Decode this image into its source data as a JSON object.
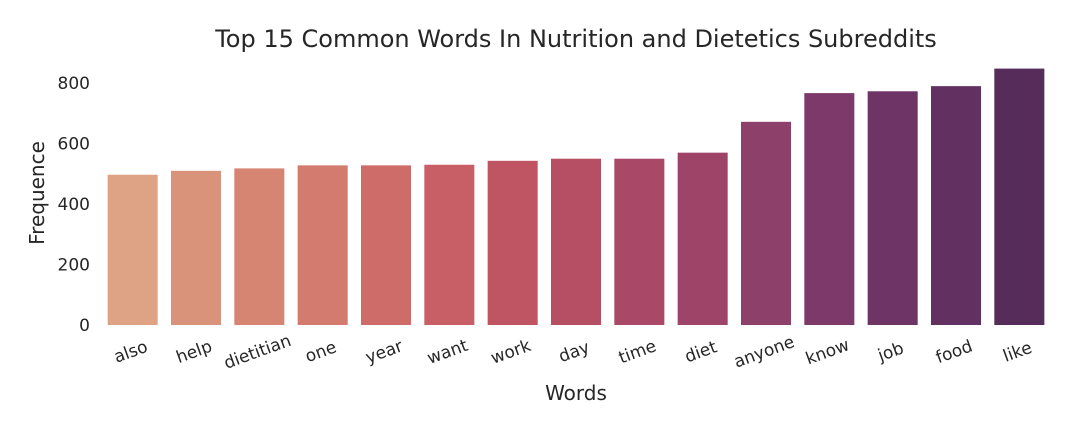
{
  "chart_data": {
    "type": "bar",
    "title": "Top 15 Common Words In Nutrition and Dietetics Subreddits",
    "xlabel": "Words",
    "ylabel": "Frequence",
    "categories": [
      "also",
      "help",
      "dietitian",
      "one",
      "year",
      "want",
      "work",
      "day",
      "time",
      "diet",
      "anyone",
      "know",
      "job",
      "food",
      "like"
    ],
    "values": [
      497,
      510,
      518,
      528,
      528,
      530,
      543,
      550,
      550,
      570,
      672,
      767,
      773,
      790,
      848
    ],
    "yticks": [
      0,
      200,
      400,
      600,
      800
    ],
    "ylim": [
      0,
      850
    ],
    "grid": false,
    "colors": [
      "#dea385",
      "#d9937b",
      "#d68573",
      "#d27b6e",
      "#ce6c69",
      "#c95f66",
      "#bf5463",
      "#b64e64",
      "#a94867",
      "#9d4468",
      "#8c406a",
      "#7d396a",
      "#6f3466",
      "#623061",
      "#552c5a"
    ]
  }
}
